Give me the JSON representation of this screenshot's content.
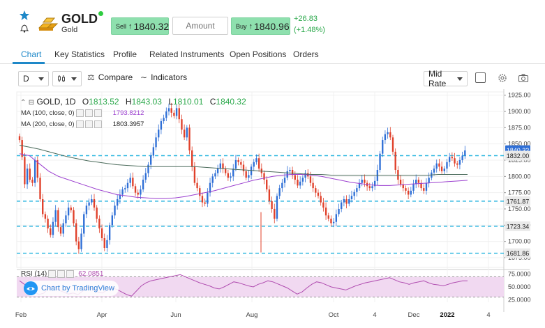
{
  "header": {
    "symbol": "GOLD",
    "name": "Gold",
    "sell_label": "Sell",
    "sell_price": "1840.32",
    "buy_label": "Buy",
    "buy_price": "1840.96",
    "amount_placeholder": "Amount",
    "change": "+26.83",
    "change_pct": "(+1.48%)",
    "colors": {
      "up": "#2aa84a",
      "button_bg": "#8ee0ae",
      "accent": "#1e88c8"
    }
  },
  "tabs": [
    {
      "label": "Chart",
      "active": true
    },
    {
      "label": "Key Statistics"
    },
    {
      "label": "Profile"
    },
    {
      "label": "Related Instruments"
    },
    {
      "label": "Open Positions"
    },
    {
      "label": "Orders"
    }
  ],
  "toolbar": {
    "interval": "D",
    "compare_label": "Compare",
    "indicators_label": "Indicators",
    "rate_select": "Mid Rate"
  },
  "chart_legend": {
    "title": "GOLD, 1D",
    "open_k": "O",
    "open": "1813.52",
    "high_k": "H",
    "high": "1843.03",
    "low_k": "L",
    "low": "1810.01",
    "close_k": "C",
    "close": "1840.32",
    "ma100_label": "MA (100, close, 0)",
    "ma100_value": "1793.8212",
    "ma200_label": "MA (200, close, 0)",
    "ma200_value": "1803.3957",
    "rsi_label": "RSI (14)",
    "rsi_value": "62.0851",
    "tradingview": "Chart by TradingView"
  },
  "chart_data": {
    "type": "candlestick",
    "x_ticks": [
      "Feb",
      "Apr",
      "Jun",
      "Aug",
      "Oct",
      "4",
      "Dec",
      "2022",
      "4"
    ],
    "y_ticks": [
      "1925.00",
      "1900.00",
      "1875.00",
      "1850.00",
      "1825.00",
      "1800.00",
      "1775.00",
      "1750.00",
      "1725.00",
      "1700.00",
      "1675.00"
    ],
    "y_range": [
      1660,
      1930
    ],
    "close_series": [
      1856,
      1830,
      1788,
      1812,
      1795,
      1790,
      1825,
      1798,
      1765,
      1742,
      1735,
      1720,
      1710,
      1730,
      1748,
      1722,
      1712,
      1728,
      1740,
      1752,
      1748,
      1728,
      1700,
      1688,
      1712,
      1742,
      1755,
      1760,
      1765,
      1752,
      1735,
      1720,
      1705,
      1690,
      1702,
      1725,
      1740,
      1755,
      1765,
      1772,
      1780,
      1782,
      1790,
      1798,
      1785,
      1775,
      1772,
      1780,
      1795,
      1805,
      1818,
      1832,
      1845,
      1860,
      1872,
      1885,
      1890,
      1900,
      1905,
      1898,
      1893,
      1905,
      1888,
      1872,
      1860,
      1875,
      1840,
      1815,
      1790,
      1782,
      1770,
      1760,
      1758,
      1775,
      1790,
      1800,
      1805,
      1812,
      1820,
      1812,
      1805,
      1798,
      1800,
      1812,
      1825,
      1822,
      1818,
      1808,
      1798,
      1802,
      1815,
      1822,
      1828,
      1812,
      1805,
      1795,
      1780,
      1762,
      1750,
      1735,
      1770,
      1782,
      1790,
      1798,
      1808,
      1810,
      1802,
      1795,
      1786,
      1792,
      1798,
      1805,
      1800,
      1790,
      1782,
      1775,
      1770,
      1760,
      1752,
      1740,
      1735,
      1728,
      1730,
      1742,
      1750,
      1760,
      1765,
      1758,
      1765,
      1770,
      1776,
      1782,
      1790,
      1795,
      1790,
      1785,
      1782,
      1785,
      1793,
      1810,
      1835,
      1856,
      1865,
      1868,
      1860,
      1838,
      1810,
      1795,
      1788,
      1782,
      1778,
      1772,
      1778,
      1788,
      1795,
      1790,
      1782,
      1778,
      1790,
      1798,
      1806,
      1812,
      1820,
      1815,
      1808,
      1812,
      1822,
      1830,
      1828,
      1820,
      1818,
      1825,
      1832,
      1840
    ],
    "ma100_series": [
      1835,
      1832,
      1820,
      1808,
      1800,
      1795,
      1790,
      1785,
      1780,
      1776,
      1772,
      1770,
      1768,
      1767,
      1766,
      1766,
      1767,
      1769,
      1772,
      1775,
      1778,
      1782,
      1786,
      1790,
      1794,
      1797,
      1800,
      1802,
      1803,
      1803,
      1802,
      1800,
      1797,
      1794,
      1791,
      1789,
      1787,
      1786,
      1786,
      1787,
      1788,
      1789,
      1790,
      1791,
      1792,
      1793,
      1794
    ],
    "ma200_series": [
      1848,
      1845,
      1842,
      1838,
      1834,
      1830,
      1827,
      1824,
      1822,
      1820,
      1818,
      1817,
      1816,
      1815,
      1815,
      1815,
      1815,
      1815,
      1815,
      1814,
      1813,
      1812,
      1811,
      1810,
      1809,
      1808,
      1807,
      1806,
      1805,
      1804,
      1803,
      1803,
      1802,
      1802,
      1802,
      1802,
      1802,
      1802,
      1802,
      1802,
      1802,
      1802,
      1802,
      1803,
      1803,
      1803,
      1803
    ],
    "rsi_series": [
      62,
      55,
      45,
      40,
      35,
      38,
      48,
      52,
      44,
      40,
      36,
      38,
      35,
      42,
      50,
      46,
      40,
      38,
      44,
      48,
      45,
      40,
      35,
      32,
      42,
      52,
      58,
      62,
      64,
      66,
      68,
      70,
      72,
      74,
      70,
      66,
      62,
      58,
      55,
      52,
      48,
      46,
      50,
      55,
      60,
      58,
      55,
      52,
      50,
      55,
      58,
      62,
      60,
      56,
      52,
      48,
      42,
      36,
      40,
      48,
      55,
      60,
      58,
      54,
      50,
      48,
      46,
      44,
      48,
      52,
      55,
      58,
      60,
      62,
      64,
      66,
      68,
      64,
      60,
      58,
      55,
      58,
      60,
      62,
      58,
      55,
      54,
      52,
      55,
      58,
      60,
      62,
      62
    ],
    "rsi_levels": [
      70,
      30
    ],
    "rsi_ticks": [
      "75.0000",
      "50.0000",
      "25.0000"
    ],
    "price_tags": [
      {
        "label": "1840.32",
        "value": 1840.32,
        "kind": "last"
      },
      {
        "label": "1832.00",
        "value": 1832,
        "kind": "line"
      },
      {
        "label": "1761.87",
        "value": 1761.87,
        "kind": "line"
      },
      {
        "label": "1723.34",
        "value": 1723.34,
        "kind": "line"
      },
      {
        "label": "1681.86",
        "value": 1681.86,
        "kind": "line"
      }
    ],
    "colors": {
      "up": "#2f6fd6",
      "down": "#e0402a",
      "ma100": "#9b3fcf",
      "ma200": "#4b6b5b",
      "hline": "#30b8e0",
      "rsi": "#b04db0",
      "rsi_fill": "#f1d9f1",
      "last_tag": "#2f6fd6",
      "line_tag": "#eaeaea"
    }
  }
}
